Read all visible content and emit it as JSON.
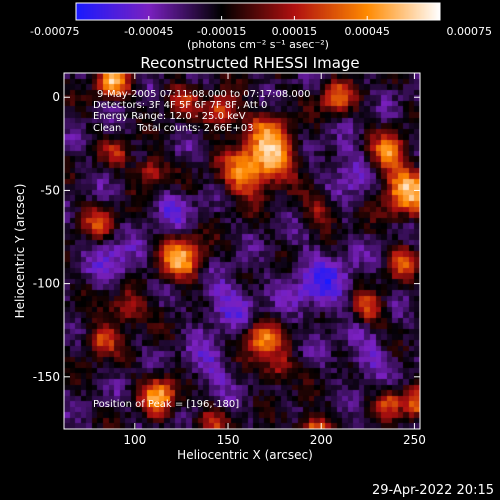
{
  "chart_data": {
    "type": "heatmap",
    "title": "Reconstructed RHESSI Image",
    "xlabel": "Heliocentric X (arcsec)",
    "ylabel": "Heliocentric Y (arcsec)",
    "xlim": [
      62,
      253
    ],
    "ylim": [
      -178,
      13
    ],
    "x_ticks": [
      100,
      150,
      200,
      250
    ],
    "y_ticks": [
      0,
      -50,
      -100,
      -150
    ],
    "colorbar": {
      "min": -0.00075,
      "max": 0.00075,
      "ticks": [
        "-0.00075",
        "-0.00045",
        "-0.00015",
        "0.00015",
        "0.00045",
        "0.00075"
      ],
      "unit_label": "(photons cm⁻² s⁻¹ asec⁻²)",
      "colors": [
        "#1a1aff",
        "#7a20c0",
        "#000000",
        "#b01010",
        "#ff8a00",
        "#ffffff"
      ]
    },
    "annotations": [
      "9-May-2005 07:11:08.000 to 07:17:08.000",
      "Detectors: 3F 4F 5F 6F 7F 8F, Att 0",
      "Energy Range: 12.0 - 25.0 keV",
      "Clean     Total counts: 2.66E+03"
    ],
    "peak_label": "Position of Peak = [196,-180]",
    "peak_position": [
      196,
      -180
    ],
    "blobs": [
      {
        "x": 88,
        "y": 8,
        "amp": 0.00072,
        "r": 6
      },
      {
        "x": 125,
        "y": 0,
        "amp": 0.00035,
        "r": 6
      },
      {
        "x": 146,
        "y": -8,
        "amp": 0.0006,
        "r": 6
      },
      {
        "x": 170,
        "y": -18,
        "amp": 0.00045,
        "r": 8
      },
      {
        "x": 208,
        "y": 0,
        "amp": 0.00055,
        "r": 6
      },
      {
        "x": 160,
        "y": -40,
        "amp": 0.0007,
        "r": 9
      },
      {
        "x": 176,
        "y": -32,
        "amp": 0.00062,
        "r": 8
      },
      {
        "x": 108,
        "y": -40,
        "amp": 0.00045,
        "r": 6
      },
      {
        "x": 246,
        "y": -50,
        "amp": 0.00074,
        "r": 9
      },
      {
        "x": 236,
        "y": -30,
        "amp": 0.0006,
        "r": 7
      },
      {
        "x": 125,
        "y": -87,
        "amp": 0.00073,
        "r": 8
      },
      {
        "x": 80,
        "y": -67,
        "amp": 0.0004,
        "r": 6
      },
      {
        "x": 96,
        "y": -113,
        "amp": 0.00045,
        "r": 7
      },
      {
        "x": 168,
        "y": -130,
        "amp": 0.0006,
        "r": 7
      },
      {
        "x": 176,
        "y": -145,
        "amp": 0.00042,
        "r": 6
      },
      {
        "x": 225,
        "y": -113,
        "amp": 0.0005,
        "r": 6
      },
      {
        "x": 244,
        "y": -88,
        "amp": 0.00048,
        "r": 6
      },
      {
        "x": 113,
        "y": -160,
        "amp": 0.00068,
        "r": 7
      },
      {
        "x": 82,
        "y": -130,
        "amp": 0.0005,
        "r": 6
      },
      {
        "x": 196,
        "y": -180,
        "amp": 0.00078,
        "r": 6
      },
      {
        "x": 140,
        "y": -175,
        "amp": 0.0004,
        "r": 6
      },
      {
        "x": 251,
        "y": -165,
        "amp": 0.0005,
        "r": 6
      },
      {
        "x": 236,
        "y": -163,
        "amp": 0.00045,
        "r": 5
      },
      {
        "x": 200,
        "y": -60,
        "amp": 0.00038,
        "r": 6
      },
      {
        "x": 90,
        "y": -30,
        "amp": 0.00035,
        "r": 5
      }
    ],
    "negative_blobs": [
      {
        "x": 200,
        "y": -100,
        "amp": -0.00035,
        "r": 12
      },
      {
        "x": 150,
        "y": -110,
        "amp": -0.0003,
        "r": 10
      },
      {
        "x": 90,
        "y": -90,
        "amp": -0.00028,
        "r": 9
      },
      {
        "x": 215,
        "y": -40,
        "amp": -0.0003,
        "r": 9
      },
      {
        "x": 120,
        "y": -60,
        "amp": -0.00022,
        "r": 8
      },
      {
        "x": 140,
        "y": -145,
        "amp": -0.00025,
        "r": 9
      },
      {
        "x": 225,
        "y": -140,
        "amp": -0.00025,
        "r": 8
      }
    ]
  },
  "footer": {
    "timestamp": "29-Apr-2022 20:15"
  }
}
